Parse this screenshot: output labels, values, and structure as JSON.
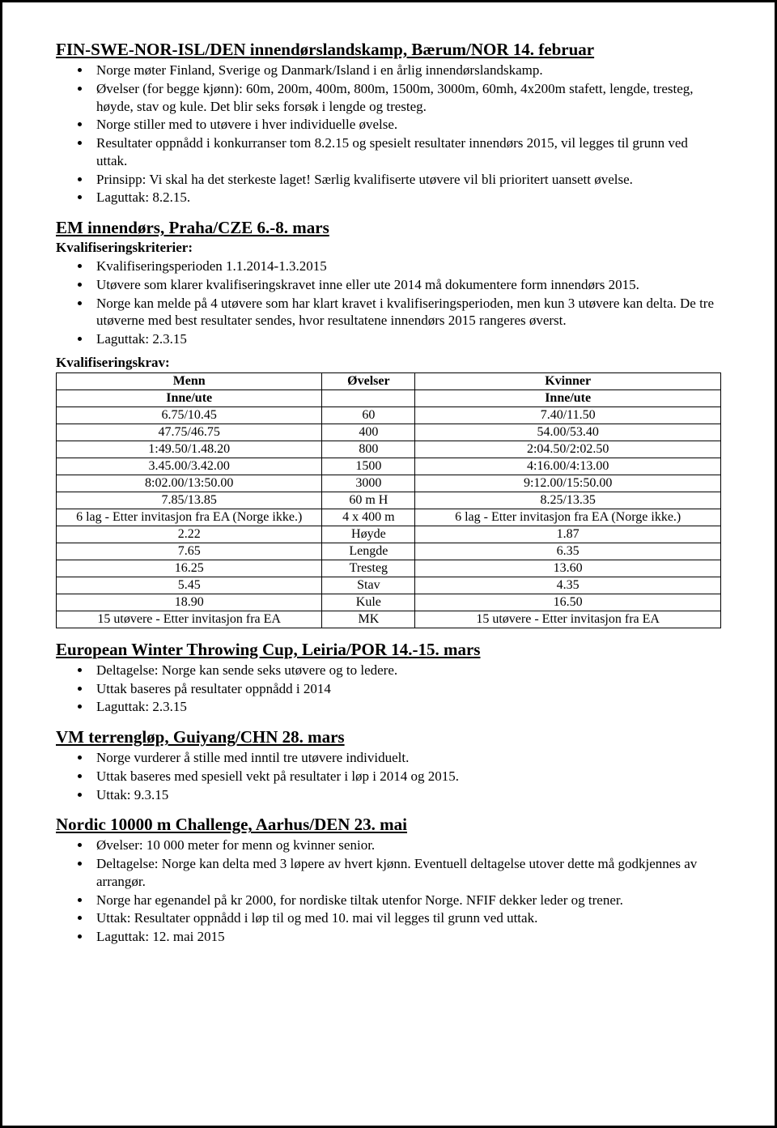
{
  "section1": {
    "title": "FIN-SWE-NOR-ISL/DEN innendørslandskamp, Bærum/NOR 14. februar",
    "bullets": [
      "Norge møter Finland, Sverige og Danmark/Island i en årlig innendørslandskamp.",
      "Øvelser (for begge kjønn): 60m, 200m, 400m, 800m, 1500m, 3000m, 60mh, 4x200m stafett, lengde, tresteg, høyde, stav og kule. Det blir seks forsøk i lengde og tresteg.",
      "Norge stiller med to utøvere i hver individuelle øvelse.",
      "Resultater oppnådd i konkurranser tom 8.2.15 og spesielt resultater innendørs 2015, vil legges til grunn ved uttak.",
      "Prinsipp: Vi skal ha det sterkeste laget! Særlig kvalifiserte utøvere vil bli prioritert uansett øvelse.",
      "Laguttak: 8.2.15."
    ]
  },
  "section2": {
    "title": "EM innendørs, Praha/CZE 6.-8. mars",
    "subhead": "Kvalifiseringskriterier:",
    "bullets": [
      "Kvalifiseringsperioden 1.1.2014-1.3.2015",
      "Utøvere som klarer kvalifiseringskravet inne eller ute 2014 må dokumentere form innendørs 2015.",
      "Norge kan melde på 4 utøvere som har klart kravet i kvalifiseringsperioden, men kun 3 utøvere kan delta. De tre utøverne med best resultater sendes, hvor resultatene innendørs 2015 rangeres øverst.",
      "Laguttak: 2.3.15"
    ],
    "tablehead": "Kvalifiseringskrav:",
    "table": {
      "header1": [
        "Menn",
        "Øvelser",
        "Kvinner"
      ],
      "header2": [
        "Inne/ute",
        "",
        "Inne/ute"
      ],
      "rows": [
        [
          "6.75/10.45",
          "60",
          "7.40/11.50"
        ],
        [
          "47.75/46.75",
          "400",
          "54.00/53.40"
        ],
        [
          "1:49.50/1.48.20",
          "800",
          "2:04.50/2:02.50"
        ],
        [
          "3.45.00/3.42.00",
          "1500",
          "4:16.00/4:13.00"
        ],
        [
          "8:02.00/13:50.00",
          "3000",
          "9:12.00/15:50.00"
        ],
        [
          "7.85/13.85",
          "60 m H",
          "8.25/13.35"
        ],
        [
          "6 lag - Etter invitasjon fra EA (Norge ikke.)",
          "4 x 400 m",
          "6 lag - Etter invitasjon fra EA (Norge ikke.)"
        ],
        [
          "2.22",
          "Høyde",
          "1.87"
        ],
        [
          "7.65",
          "Lengde",
          "6.35"
        ],
        [
          "16.25",
          "Tresteg",
          "13.60"
        ],
        [
          "5.45",
          "Stav",
          "4.35"
        ],
        [
          "18.90",
          "Kule",
          "16.50"
        ],
        [
          "15 utøvere - Etter invitasjon fra EA",
          "MK",
          "15 utøvere - Etter invitasjon fra EA"
        ]
      ]
    }
  },
  "section3": {
    "title": "European Winter Throwing Cup, Leiria/POR 14.-15. mars",
    "bullets": [
      "Deltagelse: Norge kan sende seks utøvere og to ledere.",
      "Uttak baseres på resultater oppnådd i 2014",
      "Laguttak: 2.3.15"
    ]
  },
  "section4": {
    "title": "VM terrengløp, Guiyang/CHN 28. mars",
    "bullets": [
      "Norge vurderer å stille med inntil tre utøvere individuelt.",
      "Uttak baseres med spesiell vekt på resultater i løp i 2014 og 2015.",
      "Uttak: 9.3.15"
    ]
  },
  "section5": {
    "title": "Nordic 10000 m Challenge, Aarhus/DEN 23. mai",
    "bullets": [
      "Øvelser: 10 000 meter for menn og kvinner senior.",
      "Deltagelse: Norge kan delta med 3 løpere av hvert kjønn. Eventuell deltagelse utover dette må godkjennes av arrangør.",
      "Norge har egenandel på kr 2000, for nordiske tiltak utenfor Norge. NFIF dekker leder og trener.",
      "Uttak: Resultater oppnådd i løp til og med 10. mai vil legges til grunn ved uttak.",
      "Laguttak: 12. mai 2015"
    ]
  }
}
